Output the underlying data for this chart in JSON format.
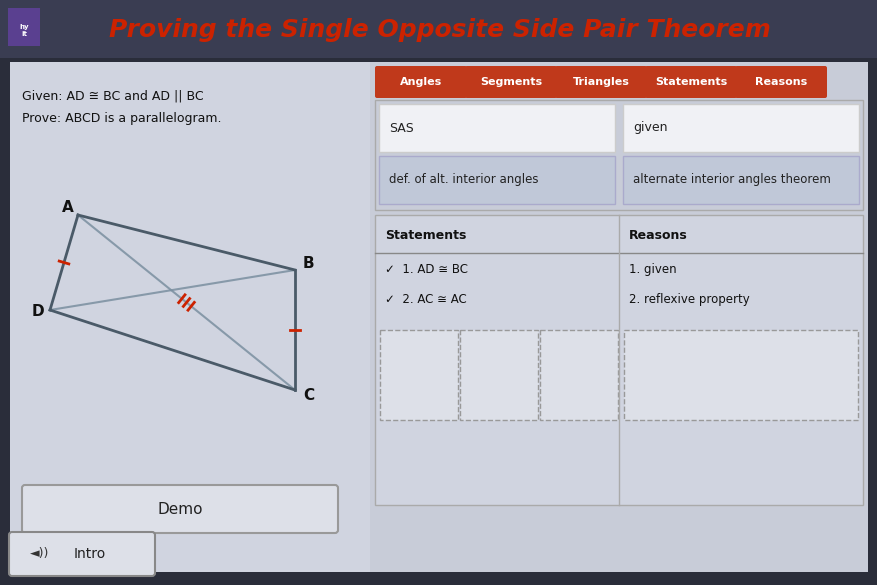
{
  "title": "Proving the Single Opposite Side Pair Theorem",
  "title_color": "#cc2200",
  "outer_bg": "#2a2d3a",
  "inner_bg": "#c8ccd8",
  "header_bar_bg": "#3a3d52",
  "given_text": "Given: AD ≅ BC and AD || BC",
  "prove_text": "Prove: ABCD is a parallelogram.",
  "tab_labels": [
    "Angles",
    "Segments",
    "Triangles",
    "Statements",
    "Reasons"
  ],
  "tab_color": "#c0391b",
  "drag_row1_left": "SAS",
  "drag_row1_right": "given",
  "drag_row2_left": "def. of alt. interior angles",
  "drag_row2_right": "alternate interior angles theorem",
  "statements_header": "Statements",
  "reasons_header": "Reasons",
  "statements": [
    "✓  1. AD ≅ BC",
    "✓  2. AC ≅ AC"
  ],
  "reasons": [
    "1. given",
    "2. reflexive property"
  ],
  "demo_btn": "Demo",
  "intro_btn": "Intro",
  "quad_color": "#4a5a68",
  "diag_color": "#7a8fa0",
  "tick_color": "#cc2200",
  "left_panel_bg": "#d0d4e0",
  "drag_bg": "#c8ccd8",
  "drag_cell_bg_white": "#f0f1f5",
  "drag_cell_bg_blue": "#c0c8d8",
  "table_bg": "#d0d4e0",
  "btn_bg": "#dde0e8"
}
